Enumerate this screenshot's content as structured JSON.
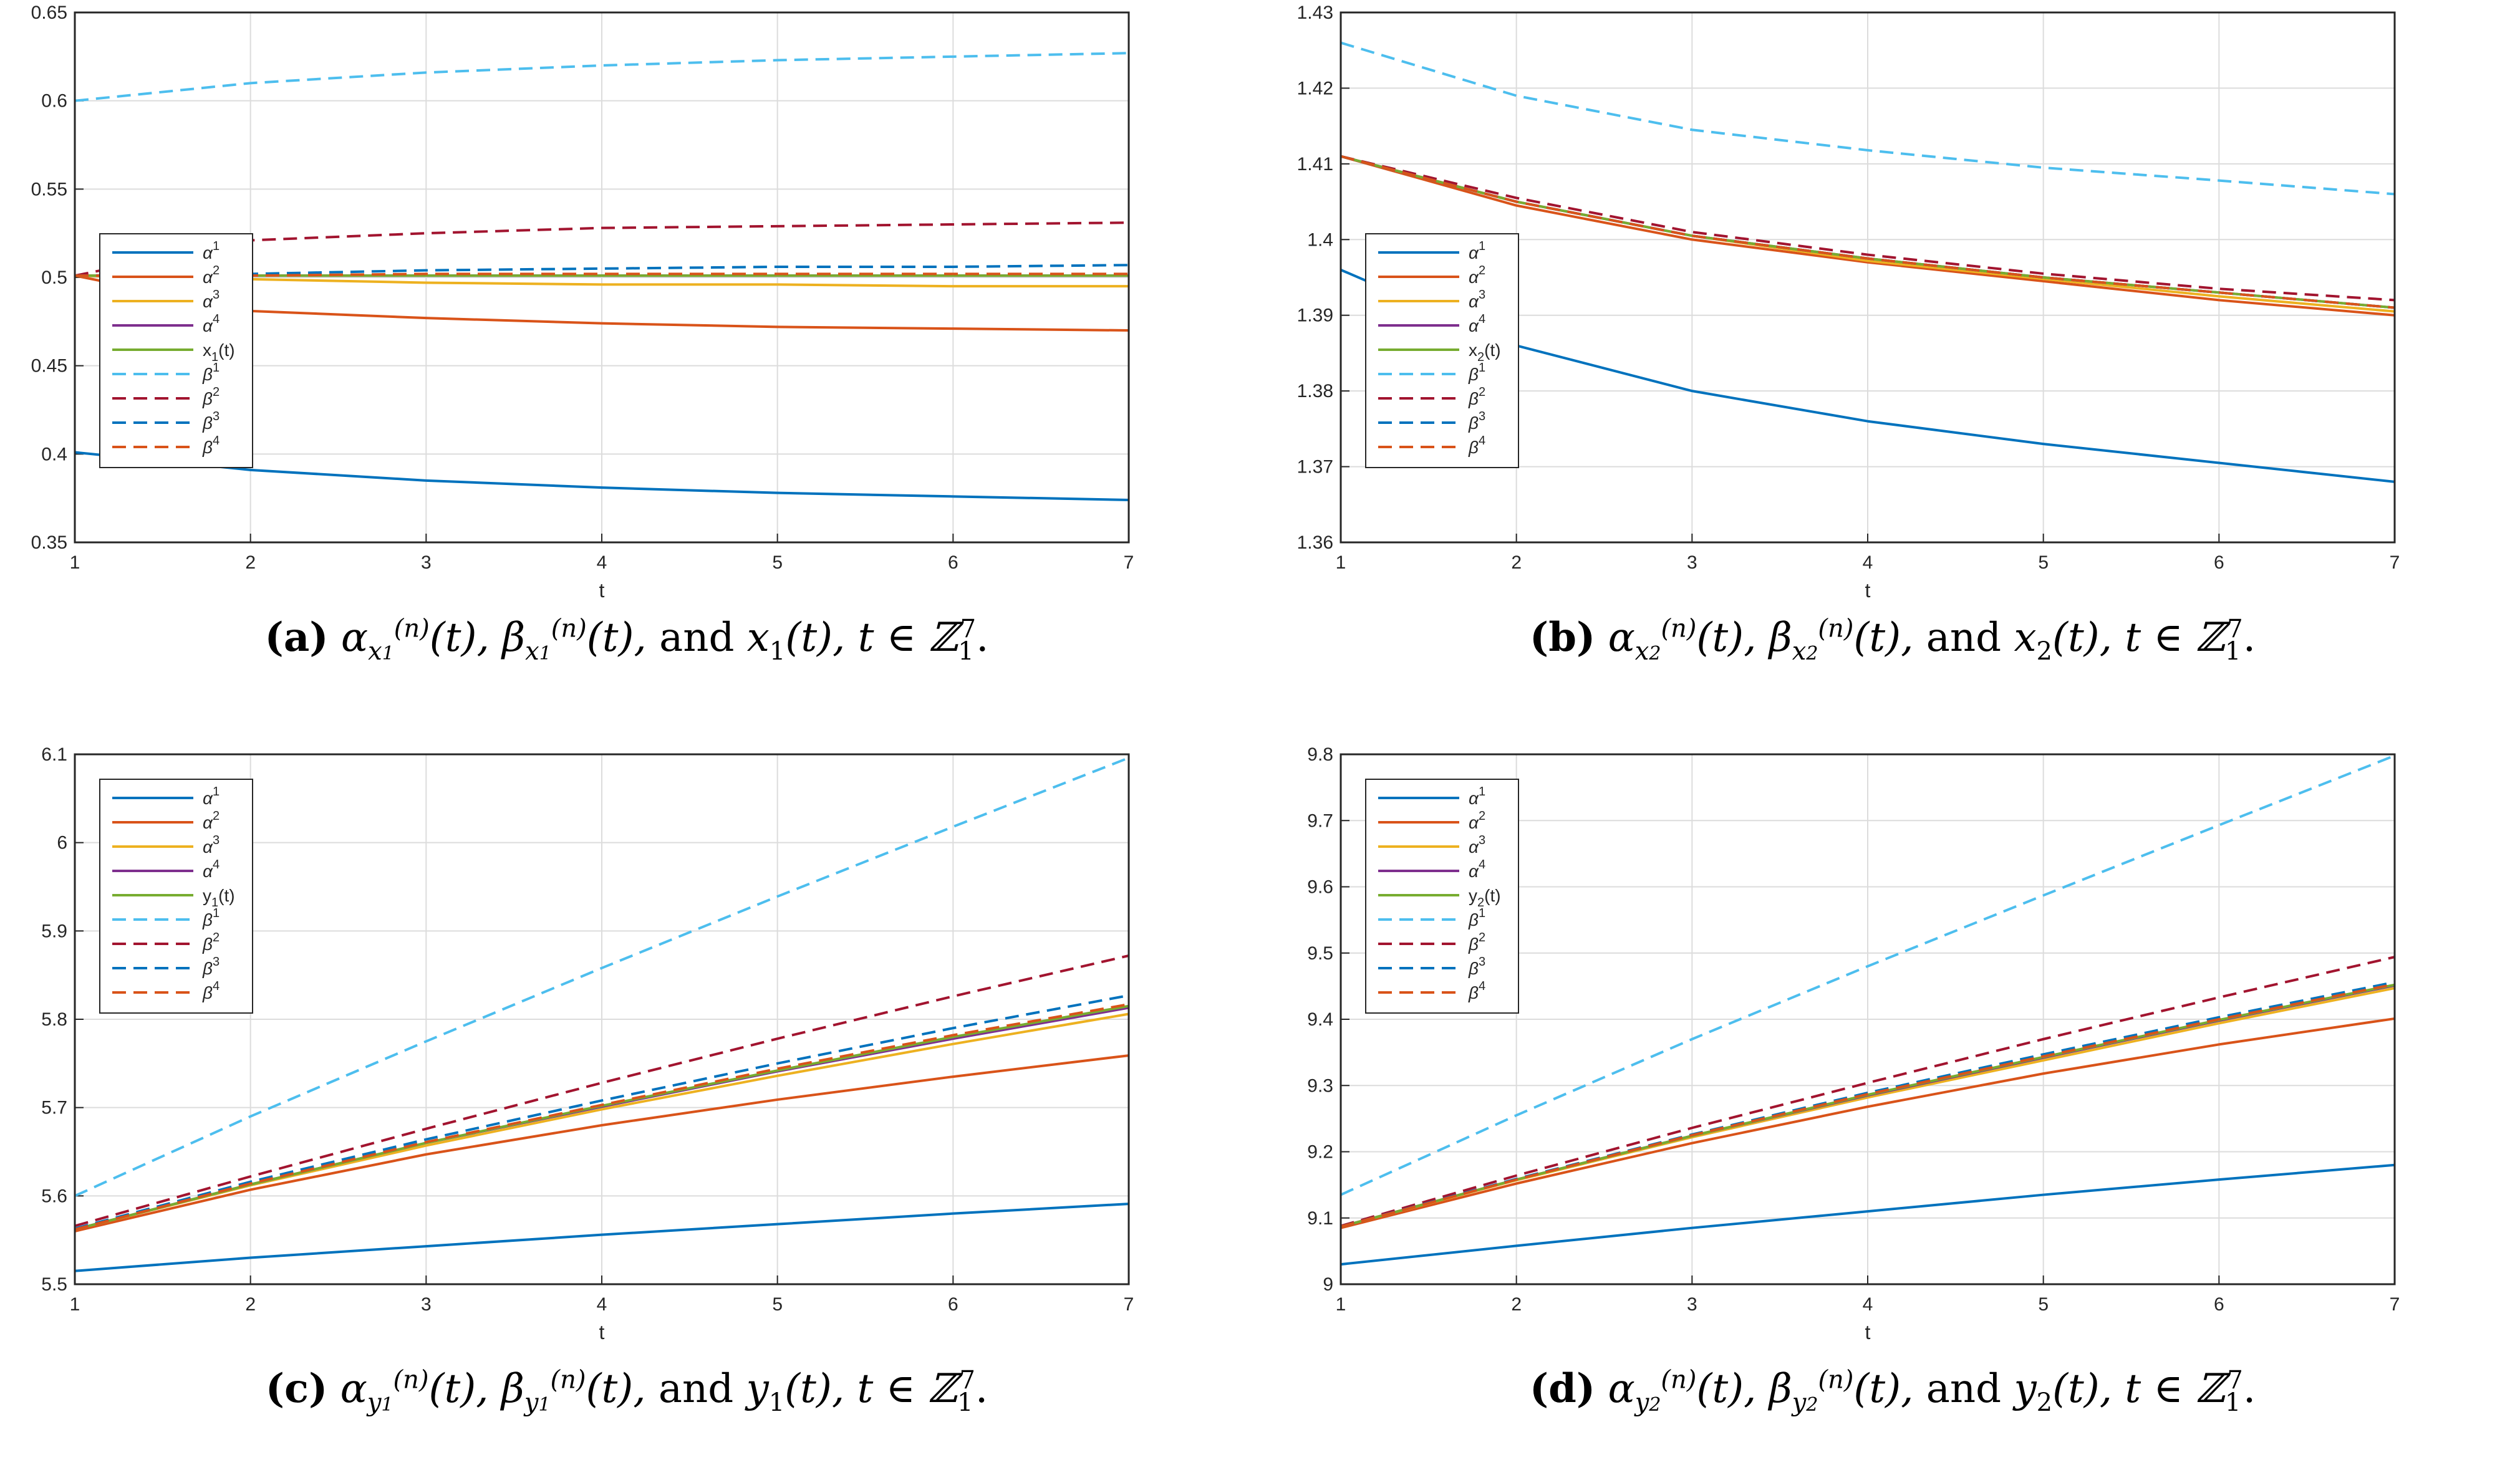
{
  "colors": {
    "alpha1": "#0072BD",
    "alpha2": "#D95319",
    "alpha3": "#EDB120",
    "alpha4": "#7E2F8E",
    "state": "#77AC30",
    "beta1": "#4DBEEE",
    "beta2": "#A2142F",
    "beta3": "#0072BD",
    "beta4": "#D95319",
    "grid": "#dcdcdc",
    "axis": "#262626"
  },
  "chart_data": [
    {
      "id": "a",
      "type": "line",
      "title": "",
      "xlabel": "t",
      "ylabel": "",
      "xlim": [
        1,
        7
      ],
      "ylim": [
        0.35,
        0.65
      ],
      "xticks": [
        "1",
        "2",
        "3",
        "4",
        "5",
        "6",
        "7"
      ],
      "yticks": [
        "0.35",
        "0.4",
        "0.45",
        "0.5",
        "0.55",
        "0.6",
        "0.65"
      ],
      "grid": true,
      "legend_placement": "middle-left",
      "x": [
        1,
        2,
        3,
        4,
        5,
        6,
        7
      ],
      "series": [
        {
          "name": "α¹",
          "sup": "1",
          "style": "solid",
          "color_key": "alpha1",
          "values": [
            0.401,
            0.391,
            0.385,
            0.381,
            0.378,
            0.376,
            0.374
          ]
        },
        {
          "name": "α²",
          "sup": "2",
          "style": "solid",
          "color_key": "alpha2",
          "values": [
            0.501,
            0.481,
            0.477,
            0.474,
            0.472,
            0.471,
            0.47
          ]
        },
        {
          "name": "α³",
          "sup": "3",
          "style": "solid",
          "color_key": "alpha3",
          "values": [
            0.501,
            0.499,
            0.497,
            0.496,
            0.496,
            0.495,
            0.495
          ]
        },
        {
          "name": "α⁴",
          "sup": "4",
          "style": "solid",
          "color_key": "alpha4",
          "values": [
            0.501,
            0.501,
            0.501,
            0.501,
            0.501,
            0.501,
            0.501
          ]
        },
        {
          "name": "x₁(t)",
          "label": "x",
          "sub": "1",
          "suffix": "(t)",
          "style": "solid",
          "color_key": "state",
          "values": [
            0.501,
            0.501,
            0.501,
            0.501,
            0.501,
            0.501,
            0.501
          ]
        },
        {
          "name": "β¹",
          "sup": "1",
          "style": "dashed",
          "color_key": "beta1",
          "values": [
            0.6,
            0.61,
            0.616,
            0.62,
            0.623,
            0.625,
            0.627
          ]
        },
        {
          "name": "β²",
          "sup": "2",
          "style": "dashed",
          "color_key": "beta2",
          "values": [
            0.501,
            0.521,
            0.525,
            0.528,
            0.529,
            0.53,
            0.531
          ]
        },
        {
          "name": "β³",
          "sup": "3",
          "style": "dashed",
          "color_key": "beta3",
          "values": [
            0.501,
            0.502,
            0.504,
            0.505,
            0.506,
            0.506,
            0.507
          ]
        },
        {
          "name": "β⁴",
          "sup": "4",
          "style": "dashed",
          "color_key": "beta4",
          "values": [
            0.501,
            0.501,
            0.502,
            0.502,
            0.502,
            0.502,
            0.502
          ]
        }
      ],
      "caption": {
        "label": "(a)",
        "alpha_sub": "x",
        "alpha_subsub": "1",
        "var": "x",
        "var_sub": "1"
      }
    },
    {
      "id": "b",
      "type": "line",
      "title": "",
      "xlabel": "t",
      "ylabel": "",
      "xlim": [
        1,
        7
      ],
      "ylim": [
        1.36,
        1.43
      ],
      "xticks": [
        "1",
        "2",
        "3",
        "4",
        "5",
        "6",
        "7"
      ],
      "yticks": [
        "1.36",
        "1.37",
        "1.38",
        "1.39",
        "1.4",
        "1.41",
        "1.42",
        "1.43"
      ],
      "grid": true,
      "legend_placement": "middle-left",
      "x": [
        1,
        2,
        3,
        4,
        5,
        6,
        7
      ],
      "series": [
        {
          "name": "α¹",
          "sup": "1",
          "style": "solid",
          "color_key": "alpha1",
          "values": [
            1.396,
            1.386,
            1.38,
            1.376,
            1.373,
            1.3705,
            1.368
          ]
        },
        {
          "name": "α²",
          "sup": "2",
          "style": "solid",
          "color_key": "alpha2",
          "values": [
            1.411,
            1.4045,
            1.4,
            1.397,
            1.3945,
            1.392,
            1.39
          ]
        },
        {
          "name": "α³",
          "sup": "3",
          "style": "solid",
          "color_key": "alpha3",
          "values": [
            1.411,
            1.405,
            1.4005,
            1.3972,
            1.3948,
            1.3925,
            1.3905
          ]
        },
        {
          "name": "α⁴",
          "sup": "4",
          "style": "solid",
          "color_key": "alpha4",
          "values": [
            1.411,
            1.405,
            1.4005,
            1.3975,
            1.395,
            1.393,
            1.391
          ]
        },
        {
          "name": "x₂(t)",
          "label": "x",
          "sub": "2",
          "suffix": "(t)",
          "style": "solid",
          "color_key": "state",
          "values": [
            1.411,
            1.405,
            1.4005,
            1.3975,
            1.395,
            1.393,
            1.391
          ]
        },
        {
          "name": "β¹",
          "sup": "1",
          "style": "dashed",
          "color_key": "beta1",
          "values": [
            1.426,
            1.419,
            1.4145,
            1.4118,
            1.4095,
            1.4078,
            1.406
          ]
        },
        {
          "name": "β²",
          "sup": "2",
          "style": "dashed",
          "color_key": "beta2",
          "values": [
            1.411,
            1.4055,
            1.401,
            1.398,
            1.3955,
            1.3935,
            1.392
          ]
        },
        {
          "name": "β³",
          "sup": "3",
          "style": "dashed",
          "color_key": "beta3",
          "values": [
            1.411,
            1.405,
            1.4005,
            1.3975,
            1.395,
            1.393,
            1.391
          ]
        },
        {
          "name": "β⁴",
          "sup": "4",
          "style": "dashed",
          "color_key": "beta4",
          "values": [
            1.411,
            1.405,
            1.4005,
            1.3975,
            1.395,
            1.393,
            1.391
          ]
        }
      ],
      "caption": {
        "label": "(b)",
        "alpha_sub": "x",
        "alpha_subsub": "2",
        "var": "x",
        "var_sub": "2"
      }
    },
    {
      "id": "c",
      "type": "line",
      "title": "",
      "xlabel": "t",
      "ylabel": "",
      "xlim": [
        1,
        7
      ],
      "ylim": [
        5.5,
        6.1
      ],
      "xticks": [
        "1",
        "2",
        "3",
        "4",
        "5",
        "6",
        "7"
      ],
      "yticks": [
        "5.5",
        "5.6",
        "5.7",
        "5.8",
        "5.9",
        "6",
        "6.1"
      ],
      "grid": true,
      "legend_placement": "top-left",
      "x": [
        1,
        2,
        3,
        4,
        5,
        6,
        7
      ],
      "series": [
        {
          "name": "α¹",
          "sup": "1",
          "style": "solid",
          "color_key": "alpha1",
          "values": [
            5.515,
            5.53,
            5.543,
            5.556,
            5.568,
            5.58,
            5.591
          ]
        },
        {
          "name": "α²",
          "sup": "2",
          "style": "solid",
          "color_key": "alpha2",
          "values": [
            5.56,
            5.607,
            5.647,
            5.68,
            5.709,
            5.735,
            5.759
          ]
        },
        {
          "name": "α³",
          "sup": "3",
          "style": "solid",
          "color_key": "alpha3",
          "values": [
            5.562,
            5.612,
            5.657,
            5.698,
            5.736,
            5.772,
            5.806
          ]
        },
        {
          "name": "α⁴",
          "sup": "4",
          "style": "solid",
          "color_key": "alpha4",
          "values": [
            5.562,
            5.613,
            5.66,
            5.701,
            5.741,
            5.778,
            5.813
          ]
        },
        {
          "name": "y₁(t)",
          "label": "y",
          "sub": "1",
          "suffix": "(t)",
          "style": "solid",
          "color_key": "state",
          "values": [
            5.562,
            5.613,
            5.66,
            5.702,
            5.742,
            5.78,
            5.815
          ]
        },
        {
          "name": "β¹",
          "sup": "1",
          "style": "dashed",
          "color_key": "beta1",
          "values": [
            5.6,
            5.69,
            5.775,
            5.858,
            5.939,
            6.018,
            6.096
          ]
        },
        {
          "name": "β²",
          "sup": "2",
          "style": "dashed",
          "color_key": "beta2",
          "values": [
            5.566,
            5.622,
            5.676,
            5.728,
            5.778,
            5.826,
            5.872
          ]
        },
        {
          "name": "β³",
          "sup": "3",
          "style": "dashed",
          "color_key": "beta3",
          "values": [
            5.563,
            5.616,
            5.664,
            5.708,
            5.75,
            5.79,
            5.827
          ]
        },
        {
          "name": "β⁴",
          "sup": "4",
          "style": "dashed",
          "color_key": "beta4",
          "values": [
            5.562,
            5.614,
            5.661,
            5.703,
            5.744,
            5.782,
            5.817
          ]
        }
      ],
      "caption": {
        "label": "(c)",
        "alpha_sub": "y",
        "alpha_subsub": "1",
        "var": "y",
        "var_sub": "1"
      }
    },
    {
      "id": "d",
      "type": "line",
      "title": "",
      "xlabel": "t",
      "ylabel": "",
      "xlim": [
        1,
        7
      ],
      "ylim": [
        9.0,
        9.8
      ],
      "xticks": [
        "1",
        "2",
        "3",
        "4",
        "5",
        "6",
        "7"
      ],
      "yticks": [
        "9",
        "9.1",
        "9.2",
        "9.3",
        "9.4",
        "9.5",
        "9.6",
        "9.7",
        "9.8"
      ],
      "grid": true,
      "legend_placement": "top-left",
      "x": [
        1,
        2,
        3,
        4,
        5,
        6,
        7
      ],
      "series": [
        {
          "name": "α¹",
          "sup": "1",
          "style": "solid",
          "color_key": "alpha1",
          "values": [
            9.03,
            9.058,
            9.085,
            9.11,
            9.135,
            9.158,
            9.18
          ]
        },
        {
          "name": "α²",
          "sup": "2",
          "style": "solid",
          "color_key": "alpha2",
          "values": [
            9.085,
            9.152,
            9.213,
            9.268,
            9.318,
            9.362,
            9.401
          ]
        },
        {
          "name": "α³",
          "sup": "3",
          "style": "solid",
          "color_key": "alpha3",
          "values": [
            9.087,
            9.157,
            9.222,
            9.282,
            9.338,
            9.394,
            9.447
          ]
        },
        {
          "name": "α⁴",
          "sup": "4",
          "style": "solid",
          "color_key": "alpha4",
          "values": [
            9.087,
            9.158,
            9.224,
            9.285,
            9.342,
            9.398,
            9.451
          ]
        },
        {
          "name": "y₂(t)",
          "label": "y",
          "sub": "2",
          "suffix": "(t)",
          "style": "solid",
          "color_key": "state",
          "values": [
            9.087,
            9.158,
            9.224,
            9.286,
            9.343,
            9.399,
            9.452
          ]
        },
        {
          "name": "β¹",
          "sup": "1",
          "style": "dashed",
          "color_key": "beta1",
          "values": [
            9.135,
            9.255,
            9.37,
            9.48,
            9.587,
            9.693,
            9.798
          ]
        },
        {
          "name": "β²",
          "sup": "2",
          "style": "dashed",
          "color_key": "beta2",
          "values": [
            9.088,
            9.164,
            9.236,
            9.304,
            9.37,
            9.433,
            9.494
          ]
        },
        {
          "name": "β³",
          "sup": "3",
          "style": "dashed",
          "color_key": "beta3",
          "values": [
            9.087,
            9.159,
            9.226,
            9.289,
            9.347,
            9.403,
            9.456
          ]
        },
        {
          "name": "β⁴",
          "sup": "4",
          "style": "dashed",
          "color_key": "beta4",
          "values": [
            9.087,
            9.158,
            9.225,
            9.287,
            9.344,
            9.4,
            9.453
          ]
        }
      ],
      "caption": {
        "label": "(d)",
        "alpha_sub": "y",
        "alpha_subsub": "2",
        "var": "y",
        "var_sub": "2"
      }
    }
  ],
  "caption_text": {
    "alpha": "α",
    "beta": "β",
    "n": "(n)",
    "of_t": "(t),",
    "and": "and",
    "t_in": "t ∈ ℤ",
    "range_sub": "1",
    "range_sup": "7",
    "end": "."
  }
}
